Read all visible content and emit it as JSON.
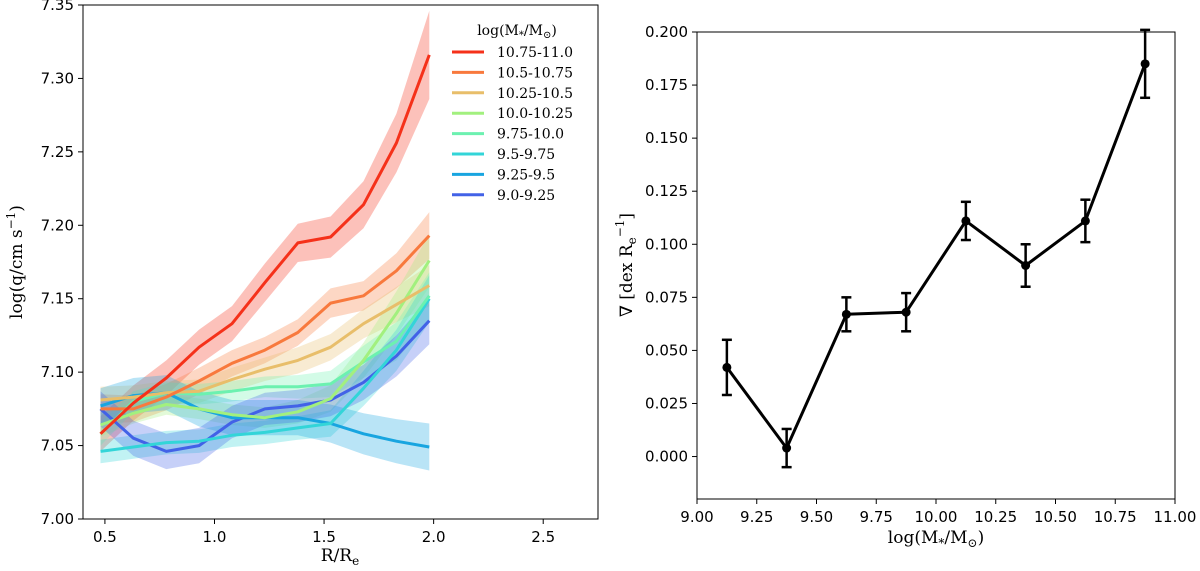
{
  "chart_data": [
    {
      "type": "line",
      "panel": "left",
      "xlabel": "R/R",
      "xlabel_sub": "e",
      "ylabel": "log(q/cm s",
      "ylabel_sup": "−1",
      "ylabel_close": ")",
      "xlim": [
        0.4,
        2.75
      ],
      "ylim": [
        7.0,
        7.35
      ],
      "xticks": [
        0.5,
        1.0,
        1.5,
        2.0,
        2.5
      ],
      "xtick_labels": [
        "0.5",
        "1.0",
        "1.5",
        "2.0",
        "2.5"
      ],
      "yticks": [
        7.0,
        7.05,
        7.1,
        7.15,
        7.2,
        7.25,
        7.3,
        7.35
      ],
      "ytick_labels": [
        "7.00",
        "7.05",
        "7.10",
        "7.15",
        "7.20",
        "7.25",
        "7.30",
        "7.35"
      ],
      "legend_title": "log(M",
      "legend_title_sub": "*",
      "legend_title_rest": "/M",
      "legend_title_sun": "⊙",
      "legend_title_close": ")",
      "legend_position": "top-right",
      "x": [
        0.48,
        0.63,
        0.78,
        0.93,
        1.08,
        1.23,
        1.38,
        1.53,
        1.68,
        1.83,
        1.98
      ],
      "series": [
        {
          "name": "10.75-11.0",
          "color": "#f5311a",
          "values": [
            7.058,
            7.079,
            7.096,
            7.117,
            7.133,
            7.161,
            7.188,
            7.192,
            7.214,
            7.256,
            7.316
          ],
          "err": [
            0.012,
            0.012,
            0.012,
            0.012,
            0.012,
            0.013,
            0.013,
            0.014,
            0.016,
            0.02,
            0.03
          ]
        },
        {
          "name": "10.5-10.75",
          "color": "#f8793d",
          "values": [
            7.075,
            7.075,
            7.083,
            7.094,
            7.106,
            7.115,
            7.127,
            7.147,
            7.152,
            7.169,
            7.193
          ],
          "err": [
            0.01,
            0.009,
            0.009,
            0.009,
            0.009,
            0.009,
            0.009,
            0.01,
            0.01,
            0.012,
            0.016
          ]
        },
        {
          "name": "10.25-10.5",
          "color": "#e8be6a",
          "values": [
            7.081,
            7.083,
            7.086,
            7.087,
            7.095,
            7.102,
            7.108,
            7.117,
            7.133,
            7.146,
            7.159
          ],
          "err": [
            0.009,
            0.008,
            0.008,
            0.008,
            0.008,
            0.008,
            0.009,
            0.009,
            0.01,
            0.012,
            0.014
          ]
        },
        {
          "name": "10.0-10.25",
          "color": "#a2f07e",
          "values": [
            7.064,
            7.072,
            7.078,
            7.075,
            7.071,
            7.069,
            7.073,
            7.082,
            7.108,
            7.14,
            7.176
          ],
          "err": [
            0.008,
            0.007,
            0.007,
            0.007,
            0.007,
            0.007,
            0.008,
            0.009,
            0.012,
            0.015,
            0.018
          ]
        },
        {
          "name": "9.75-10.0",
          "color": "#6cf1b0",
          "values": [
            7.058,
            7.08,
            7.086,
            7.085,
            7.087,
            7.09,
            7.09,
            7.092,
            7.107,
            7.121,
            7.152
          ],
          "err": [
            0.008,
            0.007,
            0.007,
            0.007,
            0.007,
            0.007,
            0.008,
            0.009,
            0.011,
            0.013,
            0.016
          ]
        },
        {
          "name": "9.5-9.75",
          "color": "#33d5d8",
          "values": [
            7.046,
            7.049,
            7.052,
            7.053,
            7.057,
            7.059,
            7.062,
            7.065,
            7.089,
            7.115,
            7.15
          ],
          "err": [
            0.008,
            0.008,
            0.008,
            0.008,
            0.008,
            0.008,
            0.008,
            0.009,
            0.012,
            0.014,
            0.016
          ]
        },
        {
          "name": "9.25-9.5",
          "color": "#18a5e0",
          "values": [
            7.077,
            7.084,
            7.086,
            7.075,
            7.069,
            7.069,
            7.069,
            7.065,
            7.058,
            7.053,
            7.049
          ],
          "err": [
            0.012,
            0.012,
            0.012,
            0.012,
            0.012,
            0.012,
            0.012,
            0.013,
            0.014,
            0.015,
            0.016
          ]
        },
        {
          "name": "9.0-9.25",
          "color": "#4262e7",
          "values": [
            7.075,
            7.055,
            7.046,
            7.05,
            7.066,
            7.075,
            7.077,
            7.081,
            7.093,
            7.111,
            7.135
          ],
          "err": [
            0.012,
            0.012,
            0.012,
            0.012,
            0.011,
            0.011,
            0.011,
            0.011,
            0.012,
            0.014,
            0.016
          ]
        }
      ]
    },
    {
      "type": "line",
      "panel": "right",
      "xlabel": "log(M",
      "xlabel_sub": "*",
      "xlabel_rest": "/M",
      "xlabel_sun": "⊙",
      "xlabel_close": ")",
      "ylabel": "∇ [dex R",
      "ylabel_sub": "e",
      "ylabel_sup": "−1",
      "ylabel_close": "]",
      "xlim": [
        9.0,
        11.0
      ],
      "ylim": [
        -0.02,
        0.2
      ],
      "xticks": [
        9.0,
        9.25,
        9.5,
        9.75,
        10.0,
        10.25,
        10.5,
        10.75,
        11.0
      ],
      "xtick_labels": [
        "9.00",
        "9.25",
        "9.50",
        "9.75",
        "10.00",
        "10.25",
        "10.50",
        "10.75",
        "11.00"
      ],
      "yticks": [
        0.0,
        0.025,
        0.05,
        0.075,
        0.1,
        0.125,
        0.15,
        0.175,
        0.2
      ],
      "ytick_labels": [
        "0.000",
        "0.025",
        "0.050",
        "0.075",
        "0.100",
        "0.125",
        "0.150",
        "0.175",
        "0.200"
      ],
      "color": "#000000",
      "x": [
        9.125,
        9.375,
        9.625,
        9.875,
        10.125,
        10.375,
        10.625,
        10.875
      ],
      "values": [
        0.042,
        0.004,
        0.067,
        0.068,
        0.111,
        0.09,
        0.111,
        0.185
      ],
      "err": [
        0.013,
        0.009,
        0.008,
        0.009,
        0.009,
        0.01,
        0.01,
        0.016
      ]
    }
  ]
}
